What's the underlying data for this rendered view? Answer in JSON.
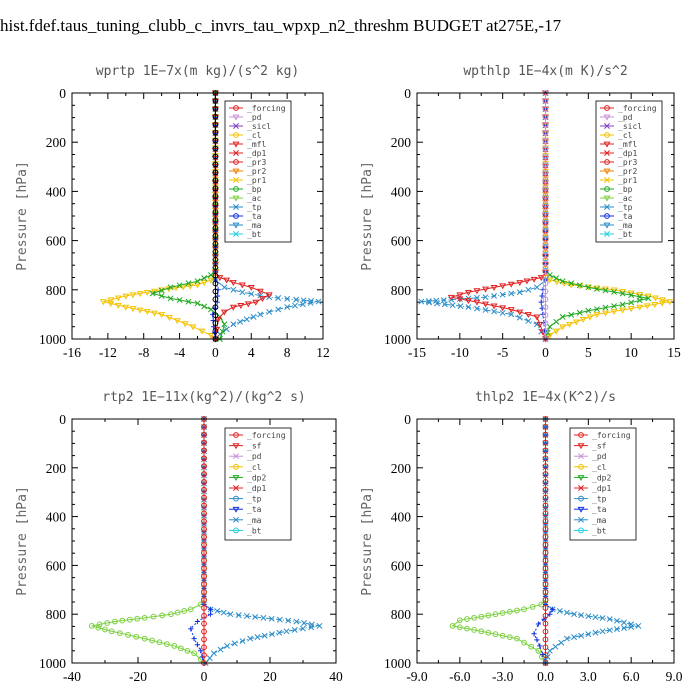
{
  "title": "hist.fdef.taus_tuning_clubb_c_invrs_tau_wpxp_n2_threshm  BUDGET at275E,-17",
  "chart_data": [
    {
      "id": "wprtp",
      "type": "line",
      "title": "wprtp   1E−7x(m kg)/(s^2 kg)",
      "ylabel": "Pressure [hPa]",
      "xlim": [
        -16,
        12
      ],
      "ylim": [
        1000,
        0
      ],
      "xticks": [
        "-16",
        "-12",
        "-8",
        "-4",
        "0",
        "4",
        "8",
        "12"
      ],
      "yticks": [
        "0",
        "200",
        "400",
        "600",
        "800",
        "1000"
      ],
      "legend": [
        "_forcing",
        "_pd",
        "_sicl",
        "_cl",
        "_mfl",
        "_dp1",
        "_pr3",
        "_pr2",
        "_pr1",
        "_bp",
        "_ac",
        "_tp",
        "_ta",
        "_ma",
        "_bt"
      ],
      "series": [
        {
          "name": "_pr1",
          "color": "#f4c200",
          "marker": "tri",
          "dash": "",
          "x": [
            0,
            0,
            0,
            -0.5,
            -2,
            -6,
            -10,
            -12.5,
            -10,
            -6,
            -2.5,
            -0.5,
            0
          ],
          "y": [
            0,
            700,
            750,
            760,
            780,
            800,
            825,
            848,
            870,
            900,
            950,
            985,
            1000
          ]
        },
        {
          "name": "_tp",
          "color": "#2a8cc8",
          "marker": "x",
          "dash": "5,2,1,2",
          "x": [
            0,
            0,
            0,
            1,
            3,
            6,
            9,
            11.5,
            8,
            5,
            2,
            0.5,
            0
          ],
          "y": [
            0,
            720,
            760,
            790,
            810,
            830,
            840,
            848,
            870,
            900,
            940,
            980,
            1000
          ]
        },
        {
          "name": "_ac",
          "color": "#22a822",
          "marker": "x",
          "dash": "",
          "x": [
            0,
            0,
            -0.5,
            -2,
            -5,
            -7,
            -5,
            -2,
            -0.5,
            0.5,
            1,
            0.8,
            0.5
          ],
          "y": [
            0,
            720,
            740,
            765,
            790,
            815,
            835,
            855,
            880,
            910,
            940,
            970,
            1000
          ]
        },
        {
          "name": "_dp1",
          "color": "#e02020",
          "marker": "tri",
          "dash": "",
          "x": [
            0,
            0,
            0.5,
            2,
            4,
            6,
            4.5,
            2,
            1,
            0.3,
            0
          ],
          "y": [
            0,
            730,
            750,
            770,
            790,
            820,
            850,
            870,
            890,
            920,
            1000
          ]
        },
        {
          "name": "_ta",
          "color": "#1030e0",
          "marker": "plus",
          "dash": "2,2",
          "x": [
            0,
            0,
            0.3,
            0.2,
            -0.3,
            -0.2,
            0
          ],
          "y": [
            0,
            760,
            800,
            850,
            900,
            950,
            1000
          ]
        },
        {
          "name": "_forcing",
          "color": "#000000",
          "marker": "circle",
          "dash": "",
          "x": [
            0,
            0
          ],
          "y": [
            0,
            1000
          ]
        }
      ]
    },
    {
      "id": "wpthlp",
      "type": "line",
      "title": "wpthlp   1E−4x(m K)/s^2",
      "ylabel": "Pressure [hPa]",
      "xlim": [
        -15,
        15
      ],
      "ylim": [
        1000,
        0
      ],
      "xticks": [
        "-15",
        "-10",
        "-5",
        "0",
        "5",
        "10",
        "15"
      ],
      "yticks": [
        "0",
        "200",
        "400",
        "600",
        "800",
        "1000"
      ],
      "legend": [
        "_forcing",
        "_pd",
        "_sicl",
        "_cl",
        "_mfl",
        "_dp1",
        "_pr3",
        "_pr2",
        "_pr1",
        "_bp",
        "_ac",
        "_tp",
        "_ta",
        "_ma",
        "_bt"
      ],
      "series": [
        {
          "name": "_pr1",
          "color": "#f4c200",
          "marker": "tri",
          "dash": "",
          "x": [
            0,
            0,
            0,
            0.5,
            3,
            8,
            12,
            14.5,
            11,
            6,
            2,
            0.5,
            0
          ],
          "y": [
            0,
            700,
            750,
            760,
            780,
            800,
            825,
            848,
            870,
            900,
            950,
            985,
            1000
          ]
        },
        {
          "name": "_ac",
          "color": "#22a822",
          "marker": "x",
          "dash": "",
          "x": [
            0,
            0,
            0.5,
            2,
            5,
            9,
            12,
            9,
            5,
            2,
            0.5,
            0
          ],
          "y": [
            0,
            720,
            740,
            765,
            790,
            815,
            835,
            860,
            885,
            910,
            950,
            1000
          ]
        },
        {
          "name": "_tp",
          "color": "#2a8cc8",
          "marker": "x",
          "dash": "5,2,1,2",
          "x": [
            0,
            0,
            0,
            -1,
            -3,
            -7,
            -11,
            -14.5,
            -9,
            -4,
            -1,
            0
          ],
          "y": [
            0,
            720,
            760,
            790,
            810,
            830,
            840,
            848,
            870,
            900,
            940,
            1000
          ]
        },
        {
          "name": "_dp1",
          "color": "#e02020",
          "marker": "tri",
          "dash": "",
          "x": [
            0,
            0,
            -0.5,
            -3,
            -6,
            -9,
            -11,
            -8,
            -4,
            -1,
            0
          ],
          "y": [
            0,
            730,
            750,
            770,
            790,
            810,
            830,
            850,
            880,
            910,
            1000
          ]
        },
        {
          "name": "_ta",
          "color": "#1030e0",
          "marker": "plus",
          "dash": "2,2",
          "x": [
            0,
            0,
            -0.3,
            -0.5,
            -0.3,
            0
          ],
          "y": [
            0,
            760,
            800,
            850,
            900,
            1000
          ]
        },
        {
          "name": "_pd",
          "color": "#c890d8",
          "marker": "circle",
          "dash": "",
          "x": [
            0,
            0
          ],
          "y": [
            0,
            1000
          ]
        }
      ]
    },
    {
      "id": "rtp2",
      "type": "line",
      "title": "rtp2   1E−11x(kg^2)/(kg^2 s)",
      "ylabel": "Pressure [hPa]",
      "xlim": [
        -40,
        40
      ],
      "ylim": [
        1000,
        0
      ],
      "xticks": [
        "-40",
        "-20",
        "0",
        "20",
        "40"
      ],
      "yticks": [
        "0",
        "200",
        "400",
        "600",
        "800",
        "1000"
      ],
      "legend": [
        "_forcing",
        "_sf",
        "_pd",
        "_cl",
        "_dp2",
        "_dp1",
        "_tp",
        "_ta",
        "_ma",
        "_bt"
      ],
      "series": [
        {
          "name": "_dp1",
          "color": "#7cd040",
          "marker": "circle",
          "dash": "",
          "x": [
            0,
            0,
            -1,
            -4,
            -10,
            -18,
            -27,
            -34,
            -28,
            -18,
            -9,
            -3,
            -1,
            0
          ],
          "y": [
            0,
            740,
            760,
            780,
            800,
            815,
            830,
            848,
            870,
            900,
            930,
            960,
            985,
            1000
          ]
        },
        {
          "name": "_tp",
          "color": "#2a8cc8",
          "marker": "x",
          "dash": "5,2,1,2",
          "x": [
            0,
            0,
            2,
            8,
            18,
            28,
            35,
            25,
            14,
            7,
            3,
            0.5
          ],
          "y": [
            0,
            760,
            780,
            800,
            815,
            830,
            848,
            870,
            900,
            930,
            960,
            1000
          ]
        },
        {
          "name": "_ta",
          "color": "#1030e0",
          "marker": "plus",
          "dash": "2,2",
          "x": [
            0,
            0,
            2,
            2,
            -2,
            -4,
            -3,
            -1,
            0
          ],
          "y": [
            0,
            760,
            780,
            800,
            830,
            860,
            900,
            950,
            1000
          ]
        },
        {
          "name": "_forcing",
          "color": "#e02020",
          "marker": "circle",
          "dash": "",
          "x": [
            0,
            0
          ],
          "y": [
            0,
            1000
          ]
        }
      ]
    },
    {
      "id": "thlp2",
      "type": "line",
      "title": "thlp2   1E−4x(K^2)/s",
      "ylabel": "Pressure [hPa]",
      "xlim": [
        -9,
        9
      ],
      "ylim": [
        1000,
        0
      ],
      "xticks": [
        "-9.0",
        "-6.0",
        "-3.0",
        "0.0",
        "3.0",
        "6.0",
        "9.0"
      ],
      "yticks": [
        "0",
        "200",
        "400",
        "600",
        "800",
        "1000"
      ],
      "legend": [
        "_forcing",
        "_sf",
        "_pd",
        "_cl",
        "_dp2",
        "_dp1",
        "_tp",
        "_ta",
        "_ma",
        "_bt"
      ],
      "series": [
        {
          "name": "_dp1",
          "color": "#7cd040",
          "marker": "circle",
          "dash": "",
          "x": [
            0,
            0,
            -0.3,
            -1.5,
            -3.5,
            -6,
            -6.5,
            -4.5,
            -2,
            -0.5,
            0
          ],
          "y": [
            0,
            740,
            760,
            780,
            800,
            825,
            848,
            870,
            900,
            950,
            1000
          ]
        },
        {
          "name": "_tp",
          "color": "#2a8cc8",
          "marker": "x",
          "dash": "5,2,1,2",
          "x": [
            0,
            0,
            0.5,
            2,
            4.5,
            6.5,
            4,
            1.5,
            0.3,
            0
          ],
          "y": [
            0,
            760,
            780,
            800,
            820,
            848,
            870,
            900,
            950,
            1000
          ]
        },
        {
          "name": "_ta",
          "color": "#1030e0",
          "marker": "plus",
          "dash": "2,2",
          "x": [
            0,
            0,
            0.5,
            0.3,
            -0.5,
            -0.8,
            -0.4,
            0
          ],
          "y": [
            0,
            760,
            780,
            800,
            840,
            880,
            930,
            1000
          ]
        },
        {
          "name": "_forcing",
          "color": "#e02020",
          "marker": "circle",
          "dash": "",
          "x": [
            0,
            0
          ],
          "y": [
            0,
            1000
          ]
        }
      ]
    }
  ],
  "legend_colors": {
    "_forcing": "#e02020",
    "_sf": "#e02020",
    "_pd": "#c890d8",
    "_sicl": "#8040c0",
    "_cl": "#f4c200",
    "_mfl": "#e02020",
    "_dp1": "#e02020",
    "_dp2": "#22a822",
    "_pr3": "#e02020",
    "_pr2": "#f08000",
    "_pr1": "#f4c200",
    "_bp": "#22a822",
    "_ac": "#7cd040",
    "_tp": "#2a8cc8",
    "_ta": "#1030e0",
    "_ma": "#2a8cc8",
    "_bt": "#20d0e0"
  }
}
